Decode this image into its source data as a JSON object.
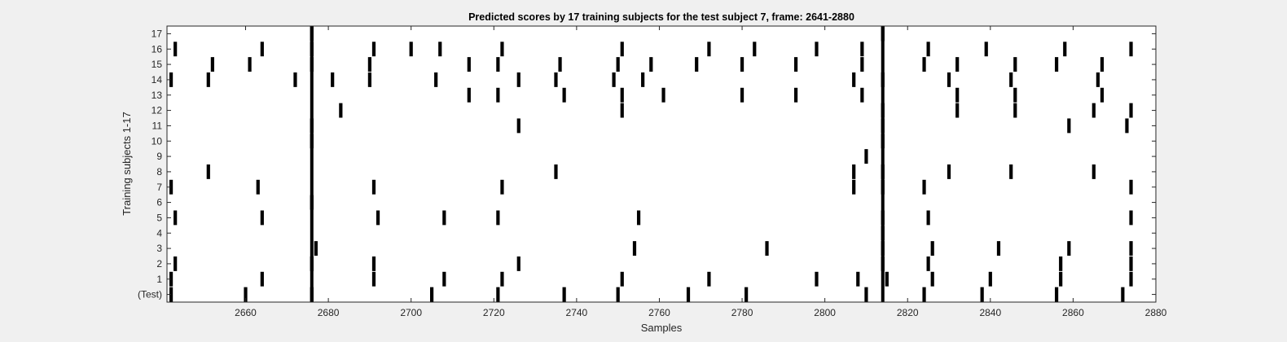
{
  "colors": {
    "background": "#f0f0f0",
    "plot_bg": "#ffffff",
    "mark": "#000000",
    "axis": "#262626"
  },
  "chart_data": {
    "type": "raster",
    "title": "Predicted scores by 17 training subjects for the test subject 7, frame: 2641-2880",
    "xlabel": "Samples",
    "ylabel": "Training subjects 1-17",
    "xlim": [
      2641,
      2880
    ],
    "x_ticks": [
      2660,
      2680,
      2700,
      2720,
      2740,
      2760,
      2780,
      2800,
      2820,
      2840,
      2860,
      2880
    ],
    "y_tick_labels": [
      "(Test)",
      "1",
      "2",
      "3",
      "4",
      "5",
      "6",
      "7",
      "8",
      "9",
      "10",
      "11",
      "12",
      "13",
      "14",
      "15",
      "16",
      "17"
    ],
    "grid": false,
    "rows": [
      {
        "label": "(Test)",
        "x": [
          2642,
          2660,
          2676,
          2705,
          2721,
          2737,
          2750,
          2767,
          2781,
          2810,
          2824,
          2838,
          2856,
          2872
        ]
      },
      {
        "label": "1",
        "x": [
          2642,
          2664,
          2691,
          2708,
          2722,
          2751,
          2772,
          2798,
          2808,
          2815,
          2826,
          2840,
          2857,
          2874
        ]
      },
      {
        "label": "2",
        "x": [
          2643,
          2676,
          2691,
          2726,
          2814,
          2825,
          2857,
          2874
        ]
      },
      {
        "label": "3",
        "x": [
          2677,
          2754,
          2786,
          2814,
          2826,
          2842,
          2859,
          2874
        ]
      },
      {
        "label": "4",
        "x": [
          2814
        ]
      },
      {
        "label": "5",
        "x": [
          2643,
          2664,
          2692,
          2708,
          2721,
          2755,
          2814,
          2825,
          2874
        ]
      },
      {
        "label": "6",
        "x": [
          2676
        ]
      },
      {
        "label": "7",
        "x": [
          2642,
          2663,
          2691,
          2722,
          2807,
          2814,
          2824,
          2874
        ]
      },
      {
        "label": "8",
        "x": [
          2651,
          2735,
          2807,
          2814,
          2830,
          2845,
          2865
        ]
      },
      {
        "label": "9",
        "x": [
          2810
        ]
      },
      {
        "label": "10",
        "x": [
          2676,
          2814
        ]
      },
      {
        "label": "11",
        "x": [
          2676,
          2726,
          2814,
          2859,
          2873
        ]
      },
      {
        "label": "12",
        "x": [
          2683,
          2751,
          2814,
          2832,
          2846,
          2865,
          2874
        ]
      },
      {
        "label": "13",
        "x": [
          2714,
          2721,
          2737,
          2751,
          2761,
          2780,
          2793,
          2809,
          2832,
          2846,
          2867
        ]
      },
      {
        "label": "14",
        "x": [
          2642,
          2651,
          2672,
          2681,
          2690,
          2706,
          2726,
          2735,
          2749,
          2756,
          2807,
          2814,
          2830,
          2845,
          2866
        ]
      },
      {
        "label": "15",
        "x": [
          2652,
          2661,
          2676,
          2690,
          2714,
          2721,
          2736,
          2750,
          2758,
          2769,
          2780,
          2793,
          2809,
          2824,
          2832,
          2846,
          2856,
          2867
        ]
      },
      {
        "label": "16",
        "x": [
          2643,
          2664,
          2676,
          2691,
          2700,
          2707,
          2722,
          2751,
          2772,
          2783,
          2798,
          2809,
          2825,
          2839,
          2858,
          2874
        ]
      },
      {
        "label": "17",
        "x": [
          2676,
          2814
        ]
      }
    ],
    "full_height_marks_x": [
      2676,
      2814
    ]
  }
}
